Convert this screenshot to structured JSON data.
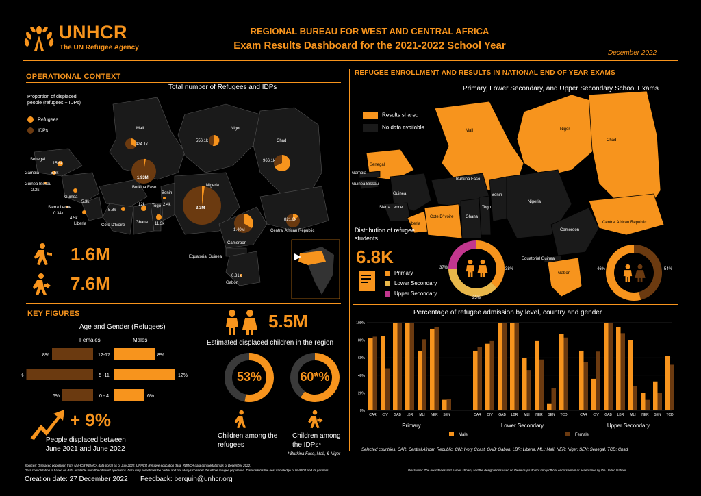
{
  "header": {
    "logo_text": "UNHCR",
    "logo_sub": "The UN Refugee Agency",
    "title_line1": "REGIONAL BUREAU FOR WEST AND CENTRAL AFRICA",
    "title_line2": "Exam Results Dashboard for the 2021-2022 School Year",
    "date": "December 2022"
  },
  "operational": {
    "section_title": "OPERATIONAL CONTEXT",
    "map_title": "Total number of Refugees and IDPs",
    "legend_title": "Proportion of displaced people (refugees + IDPs)",
    "legend_refugees": "Refugees",
    "legend_idps": "IDPs",
    "countries": [
      {
        "name": "Mali",
        "value": "424.1k"
      },
      {
        "name": "Niger",
        "value": "556.1k"
      },
      {
        "name": "Chad",
        "value": "966.1k"
      },
      {
        "name": "Senegal",
        "value": "15.6k"
      },
      {
        "name": "Gambia",
        "value": "5.5k"
      },
      {
        "name": "Guinea Bissau",
        "value": "2.2k"
      },
      {
        "name": "Guinea",
        "value": "5.3k"
      },
      {
        "name": "Sierra Leone",
        "value": "0.34k"
      },
      {
        "name": "Liberia",
        "value": "4.5k"
      },
      {
        "name": "Burkina Faso",
        "value": "1.93M"
      },
      {
        "name": "Cote D'Ivoire",
        "value": "5.8k"
      },
      {
        "name": "Ghana",
        "value": "12k"
      },
      {
        "name": "Togo",
        "value": "11.3k"
      },
      {
        "name": "Benin",
        "value": "2.4k"
      },
      {
        "name": "Nigeria",
        "value": "3.3M"
      },
      {
        "name": "Cameroon",
        "value": "1.40M"
      },
      {
        "name": "Central African Republic",
        "value": "821.6k"
      },
      {
        "name": "Equatorial Guinea",
        "value": ""
      },
      {
        "name": "Gabon",
        "value": "0.31k"
      }
    ],
    "refugees_total": "1.6M",
    "idps_total": "7.6M"
  },
  "key_figures": {
    "section_title": "KEY FIGURES",
    "age_gender_title": "Age and Gender (Refugees)",
    "females_label": "Females",
    "males_label": "Males",
    "age_rows": [
      {
        "group": "12-17",
        "female_pct": 8,
        "male_pct": 8,
        "female_label": "8%",
        "male_label": "8%"
      },
      {
        "group": "5 -11",
        "female_pct": 13,
        "male_pct": 12,
        "female_label": "13%",
        "male_label": "12%"
      },
      {
        "group": "0 - 4",
        "female_pct": 6,
        "male_pct": 6,
        "female_label": "6%",
        "male_label": "6%"
      }
    ],
    "growth": "+ 9%",
    "growth_desc": "People displaced between June 2021 and June 2022",
    "children_total": "5.5M",
    "children_desc": "Estimated displaced children in the region",
    "refugee_children_pct": 53,
    "refugee_children_label": "53%",
    "refugee_children_desc": "Children among the refugees",
    "idp_children_pct": 60,
    "idp_children_label": "60*%",
    "idp_children_desc": "Children among the IDPs*",
    "footnote": "* Burkina Faso, Mali, & Niger"
  },
  "enrollment": {
    "section_title": "REFUGEE ENROLLMENT AND RESULTS IN NATIONAL END OF YEAR EXAMS",
    "map_title": "Primary, Lower Secondary, and Upper Secondary School Exams",
    "legend_results": "Results shared",
    "legend_nodata": "No data available",
    "distribution_title": "Distribution of refugee students",
    "total_students": "6.8K",
    "levels": [
      {
        "name": "Primary",
        "pct": 37,
        "label": "37%",
        "color": "#f7941d"
      },
      {
        "name": "Lower Secondary",
        "pct": 38,
        "label": "38%",
        "color": "#e8b74a"
      },
      {
        "name": "Upper Secondary",
        "pct": 25,
        "label": "25%",
        "color": "#c2368e"
      }
    ],
    "gender_split": [
      {
        "name": "Female",
        "pct": 46,
        "label": "46%"
      },
      {
        "name": "Male",
        "pct": 54,
        "label": "54%"
      }
    ],
    "countries": [
      "Mali",
      "Niger",
      "Chad",
      "Senegal",
      "Gambia",
      "Guinea Bissau",
      "Guinea",
      "Burkina Faso",
      "Benin",
      "Sierra Leone",
      "Togo",
      "Nigeria",
      "Liberia",
      "Cote D'Ivoire",
      "Ghana",
      "Central African Republic",
      "Cameroon",
      "Equatorial Guinea",
      "Gabon"
    ]
  },
  "chart_data": {
    "type": "bar",
    "title": "Percentage of refugee admission by level, country and gender",
    "ylim": [
      0,
      100
    ],
    "y_ticks": [
      "0%",
      "20%",
      "40%",
      "60%",
      "80%",
      "100%"
    ],
    "legend": [
      "Male",
      "Female"
    ],
    "colors": {
      "Male": "#f7941d",
      "Female": "#6b3a10"
    },
    "groups": [
      {
        "name": "Primary",
        "categories": [
          "CAR",
          "CIV",
          "GAB",
          "LBR",
          "MLI",
          "NER",
          "SEN"
        ],
        "male": [
          82,
          85,
          100,
          100,
          68,
          93,
          12
        ],
        "female": [
          84,
          48,
          100,
          100,
          81,
          95,
          13
        ]
      },
      {
        "name": "Lower Secondary",
        "categories": [
          "CAR",
          "CIV",
          "GAB",
          "LBR",
          "MLI",
          "NER",
          "SEN",
          "TCD"
        ],
        "male": [
          68,
          76,
          100,
          100,
          60,
          79,
          8,
          87
        ],
        "female": [
          72,
          79,
          100,
          100,
          46,
          58,
          25,
          83
        ]
      },
      {
        "name": "Upper Secondary",
        "categories": [
          "CAR",
          "CIV",
          "GAB",
          "LBR",
          "MLI",
          "NER",
          "SEN",
          "TCD"
        ],
        "male": [
          68,
          36,
          100,
          95,
          80,
          20,
          33,
          62
        ],
        "female": [
          55,
          67,
          100,
          88,
          28,
          12,
          20,
          52
        ]
      }
    ],
    "countries_note": "Selected countries: CAR: Central African Republic, CIV: Ivory Coast, GAB: Gabon, LBR: Liberia, MLI: Mali, NER: Niger, SEN: Senegal, TCD: Chad."
  },
  "footer": {
    "sources": "Sources: Displaced population from UNHCR RBWCA data portal as of July 2022, UNHCR Refugee education data, RBWCA data consolidation as of December 2022.",
    "sources2": "Data consolidation is based on data available from the different operations. Data may sometimes be partial and not always consider the whole refugee population. Data reflects the best knowledge of UNHCR and its partners.",
    "disclaimer": "Disclaimer: The boundaries and names shown, and the designations used on these maps do not imply official endorsement or acceptance by the United Nations.",
    "creation": "Creation date: 27 December 2022",
    "feedback": "Feedback: berquin@unhcr.org"
  }
}
